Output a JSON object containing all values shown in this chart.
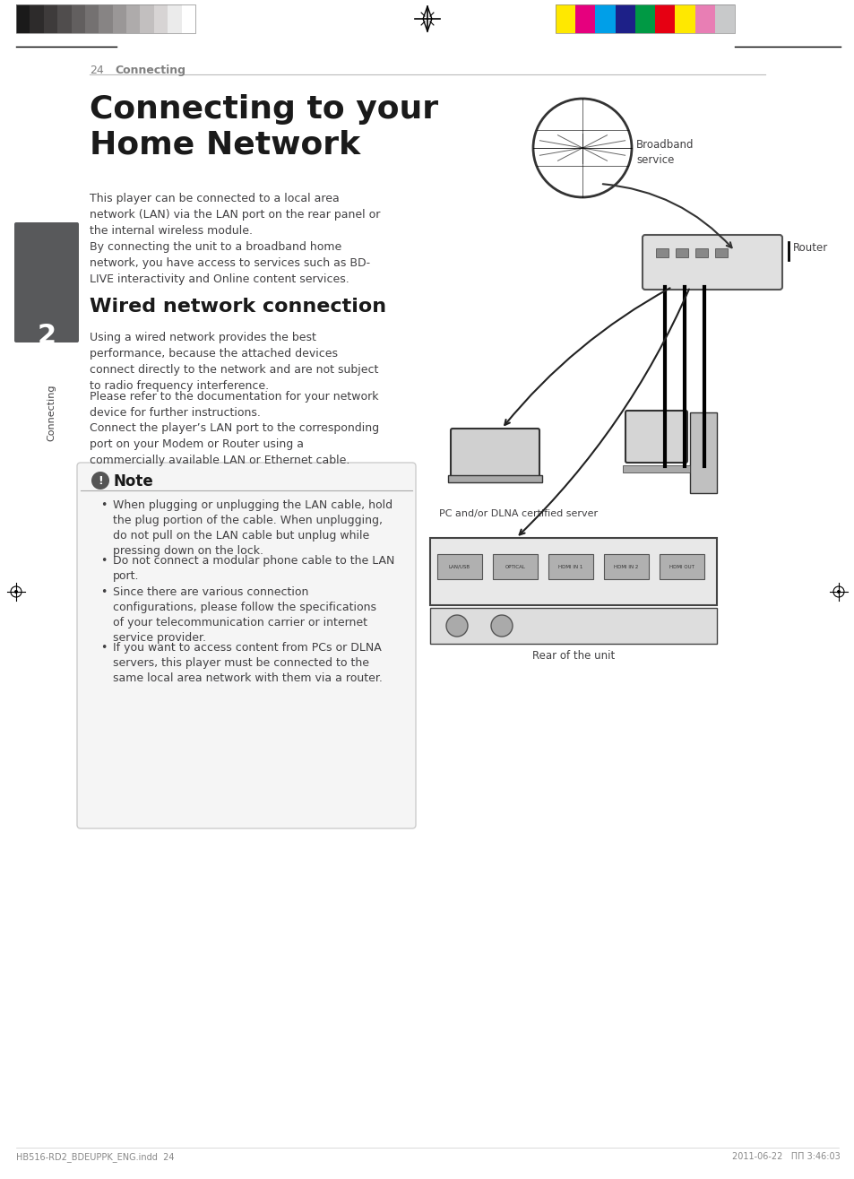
{
  "bg_color": "#ffffff",
  "page_num": "24",
  "page_header_label": "Connecting",
  "main_title": "Connecting to your\nHome Network",
  "chapter_num": "2",
  "chapter_label": "Connecting",
  "body_text_1": "This player can be connected to a local area\nnetwork (LAN) via the LAN port on the rear panel or\nthe internal wireless module.\nBy connecting the unit to a broadband home\nnetwork, you have access to services such as BD-\nLIVE interactivity and Online content services.",
  "section_title": "Wired network connection",
  "body_text_2": "Using a wired network provides the best\nperformance, because the attached devices\nconnect directly to the network and are not subject\nto radio frequency interference.",
  "body_text_3": "Please refer to the documentation for your network\ndevice for further instructions.",
  "body_text_4": "Connect the player’s LAN port to the corresponding\nport on your Modem or Router using a\ncommercially available LAN or Ethernet cable.",
  "note_title": "Note",
  "note_bullets": [
    "When plugging or unplugging the LAN cable, hold the plug portion of the cable. When unplugging, do not pull on the LAN cable but unplug while pressing down on the lock.",
    "Do not connect a modular phone cable to the LAN port.",
    "Since there are various connection configurations, please follow the specifications of your telecommunication carrier or internet service provider.",
    "If you want to access content from PCs or DLNA servers, this player must be connected to the same local area network with them via a router."
  ],
  "diagram_labels": [
    "Broadband\nservice",
    "Router",
    "PC and/or DLNA certified server",
    "Rear of the unit"
  ],
  "footer_left": "HB516-RD2_BDEUPPK_ENG.indd  24",
  "footer_right": "2011-06-22   ΠΠ 3:46:03",
  "color_bar_dark": [
    "#1a1a1a",
    "#2d2b2b",
    "#3e3b3b",
    "#504d4d",
    "#625f5f",
    "#747171",
    "#878484",
    "#9a9797",
    "#aeabab",
    "#c2bfbf",
    "#d7d4d4",
    "#ebebeb",
    "#ffffff"
  ],
  "color_bar_bright": [
    "#ffe800",
    "#e6007e",
    "#009fe8",
    "#1d2088",
    "#009944",
    "#e60012",
    "#ffe800",
    "#e87eb4",
    "#c8c9ca"
  ],
  "text_color": "#414042",
  "header_color": "#808080",
  "title_color": "#1a1a1a",
  "chapter_box_color": "#58595b"
}
